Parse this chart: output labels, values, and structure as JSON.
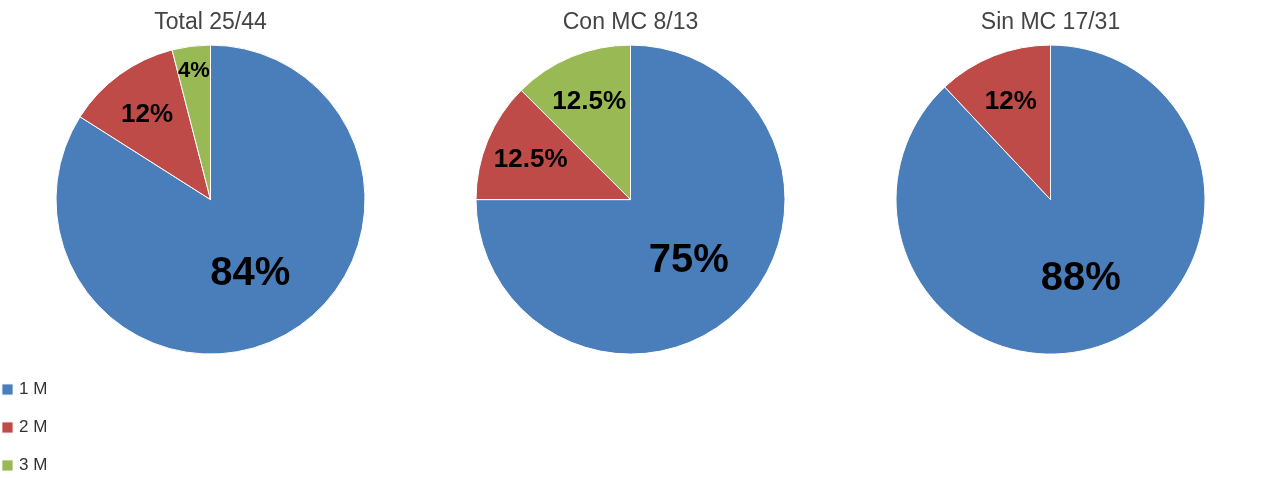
{
  "chart_data": [
    {
      "type": "pie",
      "title": "Total 25/44",
      "categories": [
        "1 M",
        "2 M",
        "3 M"
      ],
      "values": [
        84,
        12,
        4
      ],
      "value_labels": [
        "84%",
        "12%",
        "4%"
      ],
      "colors": [
        "#4a7ebb",
        "#be4b48",
        "#98b954"
      ],
      "legend": "bottom left"
    },
    {
      "type": "pie",
      "title": "Con MC 8/13",
      "categories": [
        null,
        null,
        null
      ],
      "values": [
        75,
        12.5,
        12.5
      ],
      "value_labels": [
        "75%",
        "12.5%",
        "12.5%"
      ],
      "colors": [
        "#4a7ebb",
        "#be4b48",
        "#98b954"
      ]
    },
    {
      "type": "pie",
      "title": "Sin MC 17/31",
      "categories": [
        null,
        null
      ],
      "values": [
        88,
        12
      ],
      "value_labels": [
        "88%",
        "12%"
      ],
      "colors": [
        "#4a7ebb",
        "#be4b48"
      ]
    }
  ]
}
